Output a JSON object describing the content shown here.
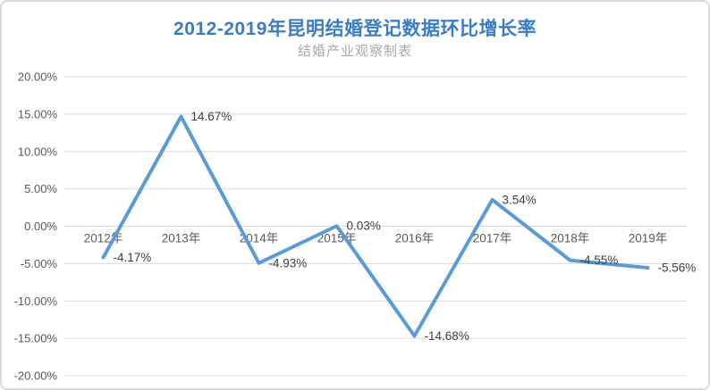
{
  "title": "2012-2019年昆明结婚登记数据环比增长率",
  "subtitle": "结婚产业观察制表",
  "colors": {
    "title": "#3b7cc4",
    "subtitle": "#a9a9a9",
    "line": "#5b9bd5",
    "gridline": "#d9d9d9",
    "tick_label": "#595959",
    "data_label": "#404040",
    "border": "#d9d9d9",
    "background": "#ffffff"
  },
  "chart_data": {
    "type": "line",
    "title": "2012-2019年昆明结婚登记数据环比增长率",
    "subtitle": "结婚产业观察制表",
    "categories": [
      "2012年",
      "2013年",
      "2014年",
      "2015年",
      "2016年",
      "2017年",
      "2018年",
      "2019年"
    ],
    "series": [
      {
        "name": "环比增长率",
        "values": [
          -4.17,
          14.67,
          -4.93,
          0.03,
          -14.68,
          3.54,
          -4.55,
          -5.56
        ],
        "data_labels": [
          "-4.17%",
          "14.67%",
          "-4.93%",
          "0.03%",
          "-14.68%",
          "3.54%",
          "-4.55%",
          "-5.56%"
        ],
        "color": "#5b9bd5"
      }
    ],
    "xlabel": "",
    "ylabel": "",
    "ylim": [
      -20,
      20
    ],
    "ytick_step": 5,
    "ytick_labels": [
      "20.00%",
      "15.00%",
      "10.00%",
      "5.00%",
      "0.00%",
      "-5.00%",
      "-10.00%",
      "-15.00%",
      "-20.00%"
    ],
    "grid": true,
    "legend_position": "none",
    "data_label_position": "right"
  }
}
